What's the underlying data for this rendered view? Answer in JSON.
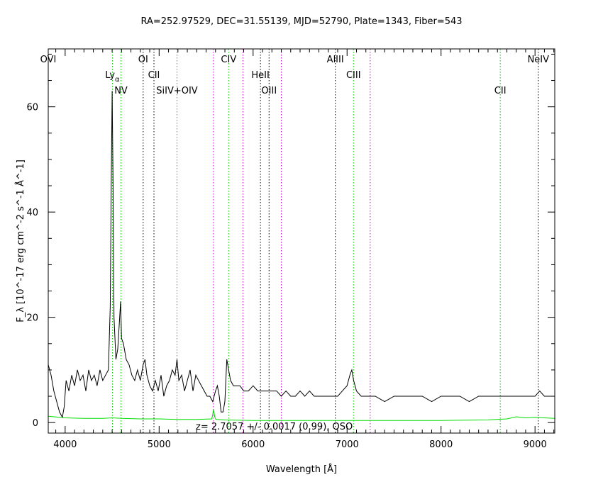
{
  "chart_data": {
    "type": "line",
    "title": "RA=252.97529, DEC=31.55139, MJD=52790, Plate=1343, Fiber=543",
    "xlabel": "Wavelength [Å]",
    "ylabel": "F_λ [10^-17 erg cm^-2 s^-1 Å^-1]",
    "xlim": [
      3820,
      9210
    ],
    "ylim": [
      -2,
      71
    ],
    "x_ticks": [
      4000,
      5000,
      6000,
      7000,
      8000,
      9000
    ],
    "y_ticks": [
      0,
      20,
      40,
      60
    ],
    "grid": false,
    "annotation": "z= 2.7057 +/- 0.0017 (0.99), QSO",
    "series": [
      {
        "role": "flux",
        "color": "#000000",
        "x": [
          3820,
          3850,
          3880,
          3910,
          3940,
          3970,
          3990,
          4010,
          4040,
          4070,
          4100,
          4130,
          4160,
          4190,
          4220,
          4250,
          4280,
          4310,
          4340,
          4370,
          4400,
          4430,
          4460,
          4480,
          4490,
          4500,
          4510,
          4520,
          4540,
          4560,
          4580,
          4590,
          4600,
          4620,
          4650,
          4680,
          4710,
          4740,
          4770,
          4800,
          4830,
          4850,
          4870,
          4900,
          4930,
          4960,
          4990,
          5020,
          5050,
          5080,
          5110,
          5140,
          5170,
          5190,
          5210,
          5240,
          5270,
          5300,
          5330,
          5360,
          5390,
          5420,
          5450,
          5480,
          5510,
          5540,
          5570,
          5600,
          5620,
          5640,
          5660,
          5680,
          5700,
          5720,
          5740,
          5760,
          5790,
          5820,
          5860,
          5900,
          5950,
          6000,
          6050,
          6100,
          6150,
          6200,
          6250,
          6300,
          6350,
          6400,
          6450,
          6500,
          6550,
          6600,
          6650,
          6700,
          6750,
          6800,
          6850,
          6900,
          6950,
          7000,
          7030,
          7050,
          7070,
          7100,
          7150,
          7200,
          7300,
          7400,
          7500,
          7600,
          7700,
          7800,
          7900,
          8000,
          8100,
          8200,
          8300,
          8400,
          8500,
          8600,
          8700,
          8800,
          8900,
          9000,
          9050,
          9100,
          9150,
          9210
        ],
        "y": [
          11,
          9,
          6,
          4,
          2,
          1,
          3,
          8,
          6,
          9,
          7,
          10,
          8,
          9,
          6,
          10,
          8,
          9,
          7,
          10,
          8,
          9,
          10,
          22,
          45,
          63,
          45,
          20,
          12,
          14,
          20,
          23,
          16,
          15,
          12,
          11,
          9,
          8,
          10,
          8,
          11,
          12,
          9,
          7,
          6,
          8,
          6,
          9,
          5,
          7,
          8,
          10,
          9,
          12,
          8,
          9,
          6,
          8,
          10,
          6,
          9,
          8,
          7,
          6,
          5,
          5,
          4,
          6,
          7,
          5,
          2,
          2,
          4,
          12,
          10,
          8,
          7,
          7,
          7,
          6,
          6,
          7,
          6,
          6,
          6,
          6,
          6,
          5,
          6,
          5,
          5,
          6,
          5,
          6,
          5,
          5,
          5,
          5,
          5,
          5,
          6,
          7,
          9,
          10,
          8,
          6,
          5,
          5,
          5,
          4,
          5,
          5,
          5,
          5,
          4,
          5,
          5,
          5,
          4,
          5,
          5,
          5,
          5,
          5,
          5,
          5,
          6,
          5,
          5,
          5
        ]
      },
      {
        "role": "error",
        "color": "#00dd00",
        "x": [
          3820,
          4000,
          4200,
          4400,
          4500,
          4600,
          4800,
          5000,
          5200,
          5400,
          5560,
          5570,
          5580,
          5590,
          5600,
          5610,
          5700,
          6000,
          6500,
          7000,
          7500,
          8000,
          8500,
          8700,
          8800,
          8900,
          9000,
          9100,
          9210
        ],
        "y": [
          1.2,
          0.9,
          0.8,
          0.8,
          0.9,
          0.8,
          0.7,
          0.7,
          0.6,
          0.6,
          0.7,
          1.5,
          2.5,
          1.2,
          0.7,
          0.6,
          0.5,
          0.4,
          0.4,
          0.4,
          0.4,
          0.4,
          0.5,
          0.7,
          1.1,
          0.9,
          1.0,
          0.9,
          0.8
        ]
      }
    ],
    "lines": [
      {
        "label": "OVI",
        "x": 3820,
        "color": "#00cc00",
        "row": 0
      },
      {
        "label": "Ly",
        "sub": "α",
        "x": 4503,
        "color": "#00cc00",
        "row": 1
      },
      {
        "label": "NV",
        "x": 4594,
        "color": "#00cc00",
        "row": 2
      },
      {
        "label": "OI",
        "x": 4830,
        "color": "#000000",
        "row": 0
      },
      {
        "label": "CII",
        "x": 4945,
        "color": "#000000",
        "row": 1
      },
      {
        "label": "SiIV+OIV",
        "x": 5190,
        "color": "#00cc00",
        "row": 2
      },
      {
        "label": "",
        "x": 5578,
        "color": "#cc00cc",
        "row": -1
      },
      {
        "label": "CIV",
        "x": 5740,
        "color": "#00cc00",
        "row": 0
      },
      {
        "label": "",
        "x": 5892,
        "color": "#cc00cc",
        "row": -1
      },
      {
        "label": "HeII",
        "x": 6078,
        "color": "#000000",
        "row": 1
      },
      {
        "label": "OIII",
        "x": 6170,
        "color": "#000000",
        "row": 2
      },
      {
        "label": "",
        "x": 6300,
        "color": "#cc00cc",
        "row": -1
      },
      {
        "label": "AlIII",
        "x": 6875,
        "color": "#000000",
        "row": 0
      },
      {
        "label": "CIII",
        "x": 7068,
        "color": "#00cc00",
        "row": 1
      },
      {
        "label": "",
        "x": 7246,
        "color": "#cc00cc",
        "row": -1
      },
      {
        "label": "CII",
        "x": 8630,
        "color": "#00cc00",
        "row": 2
      },
      {
        "label": "NeIV",
        "x": 9035,
        "color": "#000000",
        "row": 0
      }
    ]
  }
}
